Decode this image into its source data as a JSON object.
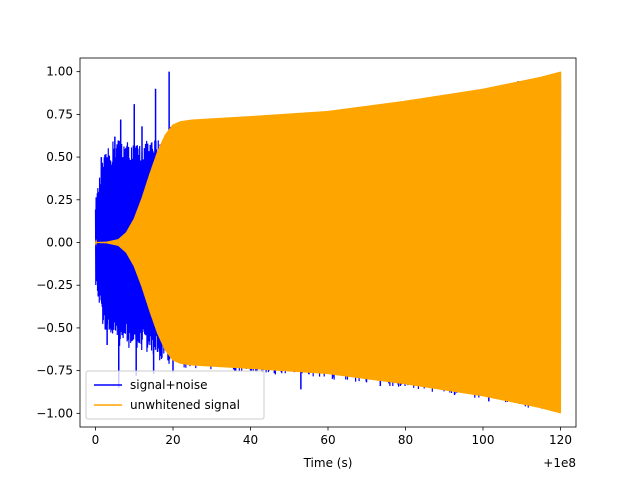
{
  "chart_data": {
    "type": "line",
    "title": "",
    "xlabel": "Time (s)",
    "ylabel": "",
    "x_offset_label": "+1e8",
    "xlim": [
      -4,
      124
    ],
    "ylim": [
      -1.08,
      1.08
    ],
    "x_ticks": [
      0,
      20,
      40,
      60,
      80,
      100,
      120
    ],
    "x_tick_labels": [
      "0",
      "20",
      "40",
      "60",
      "80",
      "100",
      "120"
    ],
    "y_ticks": [
      -1.0,
      -0.75,
      -0.5,
      -0.25,
      0.0,
      0.25,
      0.5,
      0.75,
      1.0
    ],
    "y_tick_labels": [
      "−1.00",
      "−0.75",
      "−0.50",
      "−0.25",
      "0.00",
      "0.25",
      "0.50",
      "0.75",
      "1.00"
    ],
    "grid": false,
    "legend_position": "lower-left",
    "series": [
      {
        "name": "signal+noise",
        "color": "#0000ff",
        "envelope_upper": [
          [
            0,
            0.25
          ],
          [
            2,
            0.5
          ],
          [
            5,
            0.62
          ],
          [
            8,
            0.6
          ],
          [
            10,
            0.58
          ],
          [
            14,
            0.6
          ],
          [
            17,
            0.62
          ],
          [
            19,
            0.68
          ],
          [
            21,
            0.7
          ],
          [
            40,
            0.73
          ],
          [
            60,
            0.77
          ],
          [
            80,
            0.83
          ],
          [
            100,
            0.9
          ],
          [
            120,
            1.0
          ]
        ],
        "envelope_lower": [
          [
            0,
            -0.25
          ],
          [
            2,
            -0.5
          ],
          [
            5,
            -0.6
          ],
          [
            8,
            -0.62
          ],
          [
            10,
            -0.62
          ],
          [
            14,
            -0.66
          ],
          [
            17,
            -0.7
          ],
          [
            19,
            -0.72
          ],
          [
            21,
            -0.73
          ],
          [
            40,
            -0.77
          ],
          [
            60,
            -0.8
          ],
          [
            80,
            -0.85
          ],
          [
            100,
            -0.92
          ],
          [
            120,
            -1.0
          ]
        ],
        "spikes": [
          [
            6.5,
            0.72
          ],
          [
            10,
            0.81
          ],
          [
            15.5,
            0.9
          ],
          [
            19,
            1.0
          ],
          [
            5,
            0.62
          ],
          [
            12,
            0.68
          ],
          [
            1.5,
            0.5
          ],
          [
            6,
            -0.85
          ],
          [
            10.5,
            -0.78
          ],
          [
            15,
            -0.77
          ],
          [
            20,
            -0.76
          ],
          [
            53,
            -0.86
          ],
          [
            61.5,
            -0.79
          ],
          [
            73.5,
            -0.84
          ],
          [
            101.5,
            -0.93
          ],
          [
            3,
            -0.6
          ]
        ]
      },
      {
        "name": "unwhitened signal",
        "color": "#ffa500",
        "envelope": [
          [
            0,
            0.002
          ],
          [
            3,
            0.005
          ],
          [
            6,
            0.02
          ],
          [
            8,
            0.06
          ],
          [
            10,
            0.14
          ],
          [
            12,
            0.26
          ],
          [
            14,
            0.4
          ],
          [
            16,
            0.53
          ],
          [
            18,
            0.63
          ],
          [
            20,
            0.69
          ],
          [
            22,
            0.71
          ],
          [
            25,
            0.72
          ],
          [
            40,
            0.74
          ],
          [
            60,
            0.77
          ],
          [
            70,
            0.8
          ],
          [
            80,
            0.83
          ],
          [
            100,
            0.9
          ],
          [
            115,
            0.97
          ],
          [
            120,
            1.0
          ]
        ],
        "x_end": 120
      }
    ]
  }
}
